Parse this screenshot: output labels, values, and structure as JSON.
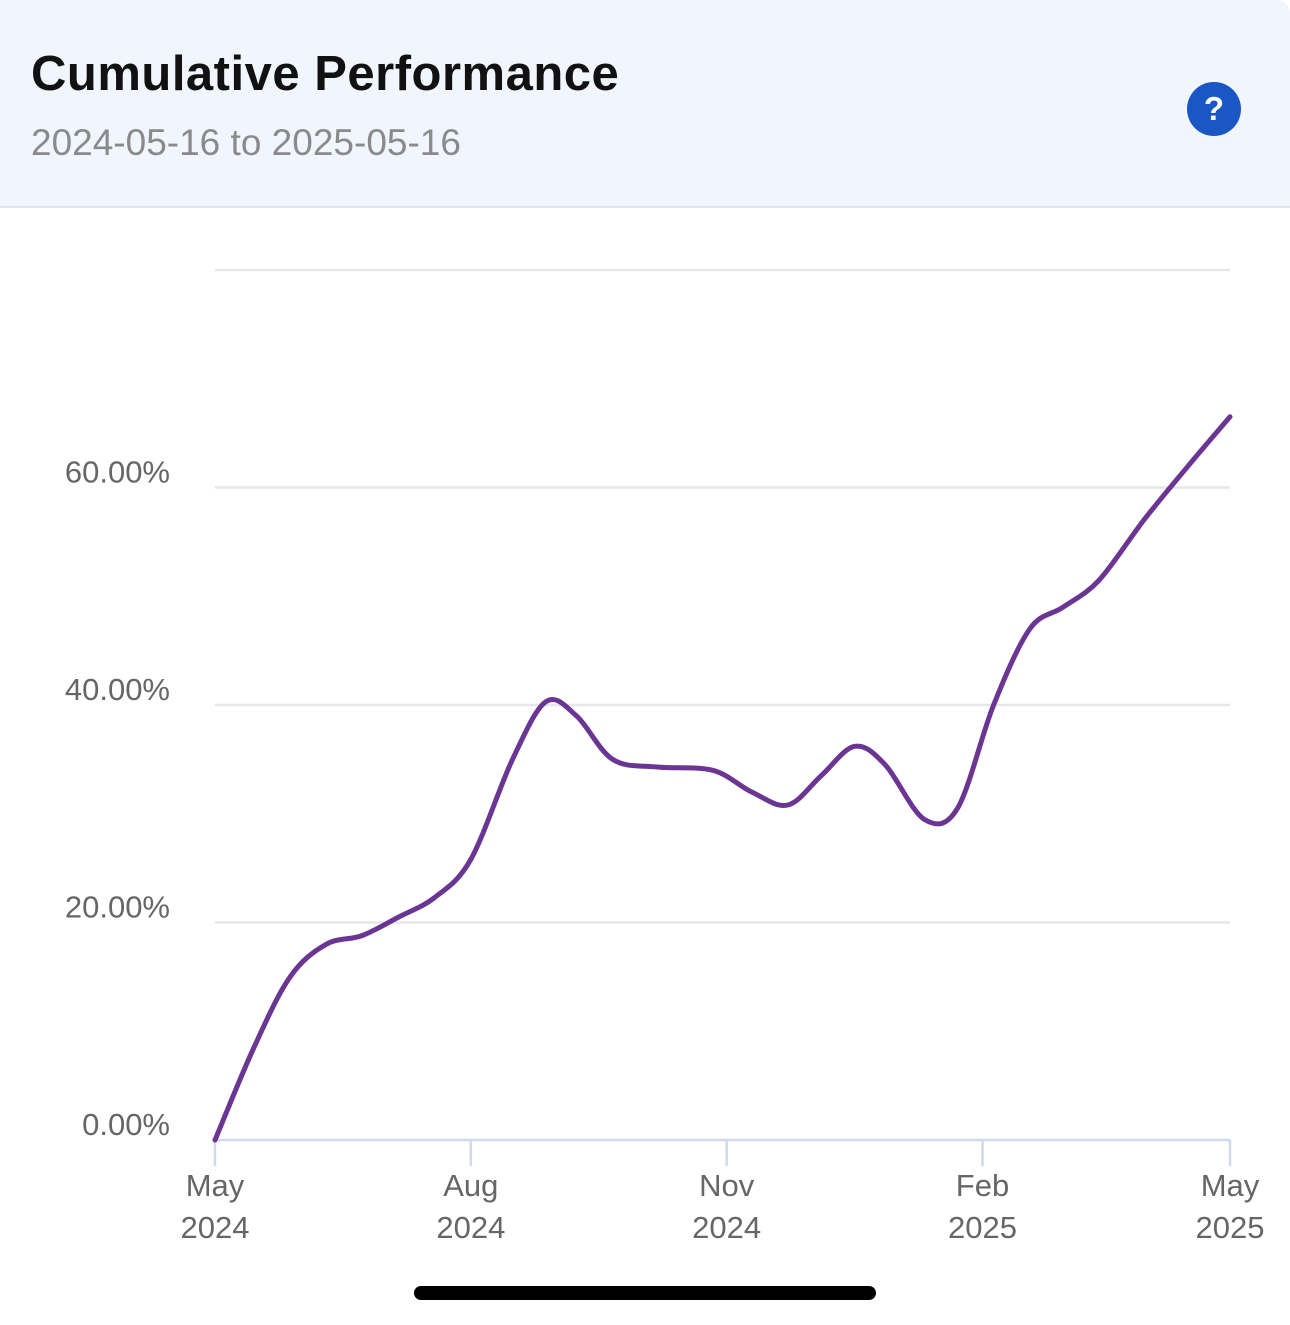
{
  "header": {
    "title": "Cumulative Performance",
    "subtitle": "2024-05-16 to 2025-05-16",
    "help_icon": "question-mark-icon",
    "help_label": "?"
  },
  "colors": {
    "header_bg": "#f1f5fd",
    "line": "#6b3593",
    "grid": "#e5e7eb",
    "axis": "#cfd9ee",
    "help_button": "#1a56c4"
  },
  "chart_data": {
    "type": "line",
    "title": "Cumulative Performance",
    "xlabel": "",
    "ylabel": "",
    "x_range": [
      "2024-05-16",
      "2025-05-16"
    ],
    "ylim": [
      0,
      80
    ],
    "yticks": [
      0,
      20,
      40,
      60
    ],
    "ytick_labels": [
      "0.00%",
      "20.00%",
      "40.00%",
      "60.00%"
    ],
    "xticks": [
      {
        "date": "2024-05-16",
        "line1": "May",
        "line2": "2024"
      },
      {
        "date": "2024-08-16",
        "line1": "Aug",
        "line2": "2024"
      },
      {
        "date": "2024-11-16",
        "line1": "Nov",
        "line2": "2024"
      },
      {
        "date": "2025-02-16",
        "line1": "Feb",
        "line2": "2025"
      },
      {
        "date": "2025-05-16",
        "line1": "May",
        "line2": "2025"
      }
    ],
    "grid": true,
    "series": [
      {
        "name": "",
        "points": [
          {
            "x": "2024-05-16",
            "y": 0.0
          },
          {
            "x": "2024-05-30",
            "y": 8.5
          },
          {
            "x": "2024-06-12",
            "y": 15.0
          },
          {
            "x": "2024-06-25",
            "y": 18.0
          },
          {
            "x": "2024-07-08",
            "y": 18.8
          },
          {
            "x": "2024-07-21",
            "y": 20.5
          },
          {
            "x": "2024-08-03",
            "y": 22.3
          },
          {
            "x": "2024-08-16",
            "y": 25.8
          },
          {
            "x": "2024-08-31",
            "y": 35.0
          },
          {
            "x": "2024-09-12",
            "y": 40.3
          },
          {
            "x": "2024-09-23",
            "y": 39.0
          },
          {
            "x": "2024-10-06",
            "y": 35.0
          },
          {
            "x": "2024-10-22",
            "y": 34.3
          },
          {
            "x": "2024-11-11",
            "y": 34.0
          },
          {
            "x": "2024-11-25",
            "y": 32.0
          },
          {
            "x": "2024-12-08",
            "y": 30.8
          },
          {
            "x": "2024-12-20",
            "y": 33.5
          },
          {
            "x": "2025-01-01",
            "y": 36.2
          },
          {
            "x": "2025-01-12",
            "y": 34.5
          },
          {
            "x": "2025-01-26",
            "y": 29.5
          },
          {
            "x": "2025-02-07",
            "y": 30.5
          },
          {
            "x": "2025-02-20",
            "y": 40.0
          },
          {
            "x": "2025-03-05",
            "y": 47.0
          },
          {
            "x": "2025-03-17",
            "y": 49.0
          },
          {
            "x": "2025-03-30",
            "y": 51.5
          },
          {
            "x": "2025-04-15",
            "y": 57.0
          },
          {
            "x": "2025-05-01",
            "y": 62.0
          },
          {
            "x": "2025-05-16",
            "y": 66.5
          }
        ]
      }
    ]
  }
}
